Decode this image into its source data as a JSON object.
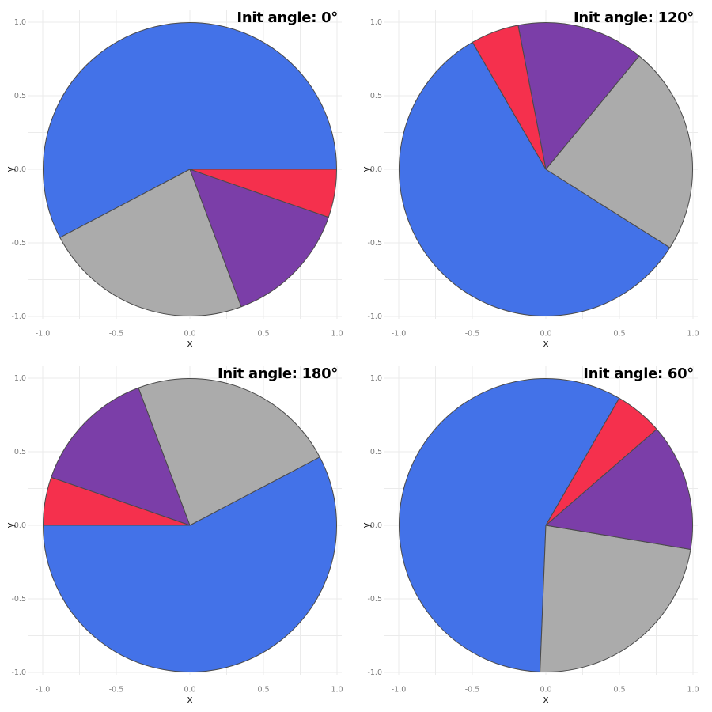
{
  "figure": {
    "background": "#ffffff",
    "grid_color": "#ebebeb",
    "tick_label_color": "#7b7b7b",
    "axis_label_color": "#1c1c1c",
    "slice_stroke": "#4a4a4a"
  },
  "chart_data": [
    {
      "type": "pie",
      "title": "Init angle: 0°",
      "init_angle_deg": 0,
      "values": [
        0.577,
        0.23,
        0.14,
        0.053
      ],
      "colors": [
        "#4372e8",
        "#ababab",
        "#7b3ea8",
        "#f5304d"
      ],
      "direction": "counterclockwise",
      "xlabel": "x",
      "ylabel": "y",
      "xlim": [
        -1.1,
        1.03
      ],
      "ylim": [
        -1.02,
        1.08
      ],
      "ticks": [
        -1.0,
        -0.5,
        0.0,
        0.5,
        1.0
      ],
      "tick_labels": [
        "-1.0",
        "-0.5",
        "0.0",
        "0.5",
        "1.0"
      ],
      "minor_grid_step": 0.25,
      "grid": true,
      "legend": "none"
    },
    {
      "type": "pie",
      "title": "Init angle: 120°",
      "init_angle_deg": 120,
      "values": [
        0.577,
        0.23,
        0.14,
        0.053
      ],
      "colors": [
        "#4372e8",
        "#ababab",
        "#7b3ea8",
        "#f5304d"
      ],
      "direction": "counterclockwise",
      "xlabel": "x",
      "ylabel": "y",
      "xlim": [
        -1.1,
        1.03
      ],
      "ylim": [
        -1.02,
        1.08
      ],
      "ticks": [
        -1.0,
        -0.5,
        0.0,
        0.5,
        1.0
      ],
      "tick_labels": [
        "-1.0",
        "-0.5",
        "0.0",
        "0.5",
        "1.0"
      ],
      "minor_grid_step": 0.25,
      "grid": true,
      "legend": "none"
    },
    {
      "type": "pie",
      "title": "Init angle: 180°",
      "init_angle_deg": 180,
      "values": [
        0.577,
        0.23,
        0.14,
        0.053
      ],
      "colors": [
        "#4372e8",
        "#ababab",
        "#7b3ea8",
        "#f5304d"
      ],
      "direction": "counterclockwise",
      "xlabel": "x",
      "ylabel": "y",
      "xlim": [
        -1.1,
        1.03
      ],
      "ylim": [
        -1.02,
        1.08
      ],
      "ticks": [
        -1.0,
        -0.5,
        0.0,
        0.5,
        1.0
      ],
      "tick_labels": [
        "-1.0",
        "-0.5",
        "0.0",
        "0.5",
        "1.0"
      ],
      "minor_grid_step": 0.25,
      "grid": true,
      "legend": "none"
    },
    {
      "type": "pie",
      "title": "Init angle: 60°",
      "init_angle_deg": 60,
      "values": [
        0.577,
        0.23,
        0.14,
        0.053
      ],
      "colors": [
        "#4372e8",
        "#ababab",
        "#7b3ea8",
        "#f5304d"
      ],
      "direction": "counterclockwise",
      "xlabel": "x",
      "ylabel": "y",
      "xlim": [
        -1.1,
        1.03
      ],
      "ylim": [
        -1.02,
        1.08
      ],
      "ticks": [
        -1.0,
        -0.5,
        0.0,
        0.5,
        1.0
      ],
      "tick_labels": [
        "-1.0",
        "-0.5",
        "0.0",
        "0.5",
        "1.0"
      ],
      "minor_grid_step": 0.25,
      "grid": true,
      "legend": "none"
    }
  ]
}
